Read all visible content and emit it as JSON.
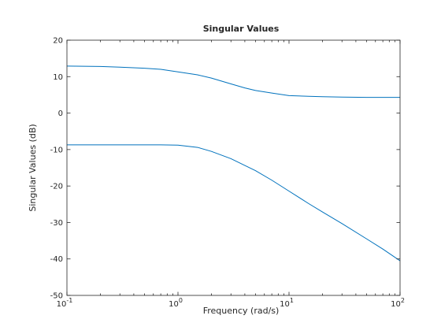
{
  "chart_data": {
    "type": "line",
    "title": "Singular Values",
    "xlabel": "Frequency (rad/s)",
    "ylabel": "Singular Values (dB)",
    "xscale": "log",
    "xlim": [
      0.1,
      100
    ],
    "ylim": [
      -50,
      20
    ],
    "xticks": [
      0.1,
      1,
      10,
      100
    ],
    "xtick_labels": [
      {
        "base": "10",
        "exp": "-1"
      },
      {
        "base": "10",
        "exp": "0"
      },
      {
        "base": "10",
        "exp": "1"
      },
      {
        "base": "10",
        "exp": "2"
      }
    ],
    "yticks": [
      20,
      10,
      0,
      -10,
      -20,
      -30,
      -40,
      -50
    ],
    "ytick_labels": [
      "20",
      "10",
      "0",
      "-10",
      "-20",
      "-30",
      "-40",
      "-50"
    ],
    "grid": false,
    "box": true,
    "line_color": "#0072BD",
    "series": [
      {
        "x": [
          0.1,
          0.2,
          0.3,
          0.5,
          0.7,
          1.0,
          1.5,
          2.0,
          3.0,
          4.0,
          5.0,
          7.0,
          10.0,
          15.0,
          20.0,
          30.0,
          50.0,
          70.0,
          100.0
        ],
        "y": [
          12.9,
          12.8,
          12.6,
          12.3,
          12.0,
          11.3,
          10.5,
          9.6,
          8.0,
          6.9,
          6.2,
          5.5,
          4.8,
          4.6,
          4.5,
          4.4,
          4.3,
          4.3,
          4.3
        ]
      },
      {
        "x": [
          0.1,
          0.2,
          0.3,
          0.5,
          0.7,
          1.0,
          1.5,
          2.0,
          3.0,
          5.0,
          7.0,
          10.0,
          15.0,
          20.0,
          30.0,
          50.0,
          70.0,
          100.0
        ],
        "y": [
          -8.7,
          -8.7,
          -8.7,
          -8.7,
          -8.7,
          -8.8,
          -9.4,
          -10.5,
          -12.5,
          -15.8,
          -18.4,
          -21.4,
          -24.8,
          -27.1,
          -30.3,
          -34.5,
          -37.3,
          -40.5
        ]
      }
    ]
  }
}
